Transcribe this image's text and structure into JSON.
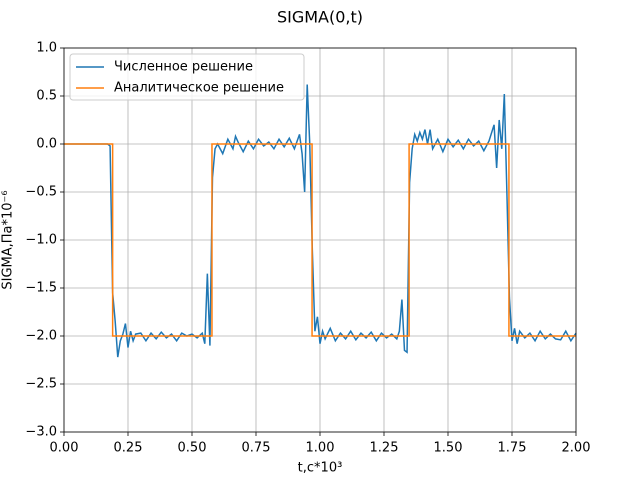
{
  "chart_data": {
    "type": "line",
    "title": "SIGMA(0,t)",
    "x_label": "t,c*10³",
    "y_label": "SIGMA,Па*10⁻⁶",
    "xlim": [
      0,
      2.0
    ],
    "ylim": [
      -3.0,
      1.0
    ],
    "xticks": [
      {
        "value": 0,
        "label": "0.00"
      },
      {
        "value": 0.25,
        "label": "0.25"
      },
      {
        "value": 0.5,
        "label": "0.50"
      },
      {
        "value": 0.75,
        "label": "0.75"
      },
      {
        "value": 1.0,
        "label": "1.00"
      },
      {
        "value": 1.25,
        "label": "1.25"
      },
      {
        "value": 1.5,
        "label": "1.50"
      },
      {
        "value": 1.75,
        "label": "1.75"
      },
      {
        "value": 2.0,
        "label": "2.00"
      }
    ],
    "yticks": [
      {
        "value": 1.0,
        "label": "1.0"
      },
      {
        "value": 0.5,
        "label": "0.5"
      },
      {
        "value": 0,
        "label": "0.0"
      },
      {
        "value": -0.5,
        "label": "−0.5"
      },
      {
        "value": -1.0,
        "label": "−1.0"
      },
      {
        "value": -1.5,
        "label": "−1.5"
      },
      {
        "value": -2.0,
        "label": "−2.0"
      },
      {
        "value": -2.5,
        "label": "−2.5"
      },
      {
        "value": -3.0,
        "label": "−3.0"
      }
    ],
    "grid": true,
    "legend": "upper left",
    "series": [
      {
        "name": "Численное решение",
        "color": "#1f77b4",
        "x": [
          0,
          0.1,
          0.17,
          0.18,
          0.19,
          0.2,
          0.21,
          0.22,
          0.23,
          0.24,
          0.25,
          0.26,
          0.27,
          0.28,
          0.3,
          0.32,
          0.34,
          0.36,
          0.38,
          0.4,
          0.42,
          0.44,
          0.46,
          0.48,
          0.5,
          0.52,
          0.54,
          0.55,
          0.56,
          0.57,
          0.58,
          0.59,
          0.6,
          0.62,
          0.64,
          0.66,
          0.67,
          0.68,
          0.7,
          0.72,
          0.74,
          0.76,
          0.78,
          0.8,
          0.82,
          0.84,
          0.86,
          0.88,
          0.9,
          0.92,
          0.93,
          0.94,
          0.95,
          0.96,
          0.97,
          0.98,
          0.99,
          1.0,
          1.01,
          1.02,
          1.04,
          1.06,
          1.08,
          1.1,
          1.12,
          1.14,
          1.16,
          1.18,
          1.2,
          1.22,
          1.24,
          1.26,
          1.28,
          1.3,
          1.31,
          1.32,
          1.33,
          1.34,
          1.35,
          1.36,
          1.37,
          1.38,
          1.39,
          1.4,
          1.41,
          1.42,
          1.43,
          1.44,
          1.46,
          1.48,
          1.5,
          1.52,
          1.54,
          1.56,
          1.58,
          1.6,
          1.62,
          1.64,
          1.66,
          1.68,
          1.69,
          1.7,
          1.71,
          1.72,
          1.73,
          1.74,
          1.75,
          1.76,
          1.77,
          1.78,
          1.8,
          1.82,
          1.84,
          1.86,
          1.88,
          1.9,
          1.92,
          1.94,
          1.96,
          1.98,
          2.0
        ],
        "values": [
          0,
          0,
          0,
          -0.02,
          -1.55,
          -1.85,
          -2.22,
          -2.05,
          -1.98,
          -1.87,
          -2.12,
          -1.95,
          -2.05,
          -1.98,
          -1.97,
          -2.05,
          -1.97,
          -2.03,
          -1.96,
          -2.02,
          -1.98,
          -2.05,
          -1.97,
          -2.0,
          -1.98,
          -2.02,
          -1.97,
          -2.08,
          -1.35,
          -2.1,
          -0.35,
          -0.05,
          0.0,
          -0.1,
          0.05,
          -0.05,
          0.08,
          0.02,
          -0.08,
          0.03,
          -0.05,
          0.05,
          -0.02,
          0.02,
          -0.05,
          0.05,
          -0.03,
          0.06,
          -0.05,
          0.1,
          -0.1,
          -0.5,
          0.62,
          0.0,
          -1.1,
          -1.95,
          -1.8,
          -2.08,
          -1.95,
          -2.03,
          -1.92,
          -2.05,
          -1.97,
          -2.03,
          -1.95,
          -2.04,
          -1.97,
          -2.02,
          -1.96,
          -2.05,
          -1.97,
          -2.02,
          -1.98,
          -2.03,
          -1.95,
          -1.62,
          -2.15,
          -2.17,
          -0.4,
          -0.05,
          0.1,
          0.03,
          0.12,
          0.05,
          0.15,
          0.0,
          0.15,
          -0.05,
          0.05,
          -0.08,
          0.05,
          -0.03,
          0.04,
          -0.05,
          0.05,
          -0.02,
          0.03,
          -0.07,
          0.03,
          0.2,
          -0.25,
          0.25,
          -0.05,
          0.52,
          -0.5,
          -1.6,
          -2.05,
          -1.92,
          -2.08,
          -1.95,
          -2.02,
          -1.97,
          -2.05,
          -1.95,
          -2.03,
          -1.98,
          -2.03,
          -2.04,
          -1.95,
          -2.05,
          -1.97
        ]
      },
      {
        "name": "Аналитическое решение",
        "color": "#ff7f0e",
        "x": [
          0,
          0.19,
          0.19,
          0.578,
          0.578,
          0.969,
          0.969,
          1.348,
          1.348,
          1.738,
          1.738,
          2.0
        ],
        "values": [
          0,
          0,
          -2,
          -2,
          0,
          0,
          -2,
          -2,
          0,
          0,
          -2,
          -2
        ]
      }
    ]
  }
}
